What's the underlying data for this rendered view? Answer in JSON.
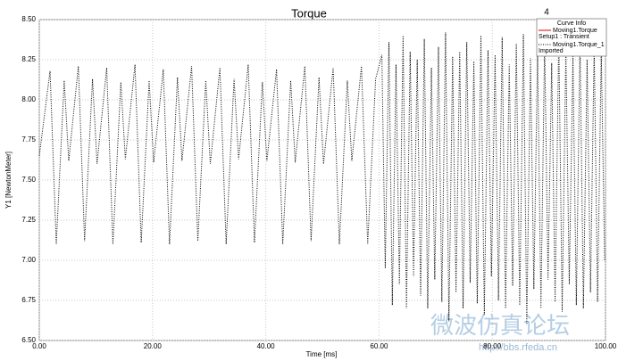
{
  "chart_data": {
    "type": "line",
    "title": "Torque",
    "corner_label": "4",
    "x_label": "Time [ms]",
    "y_label": "Y1 [NewtonMeter]",
    "xlim": [
      0,
      100
    ],
    "ylim": [
      6.5,
      8.5
    ],
    "xticks": [
      {
        "value": 0,
        "label": "0.00"
      },
      {
        "value": 20,
        "label": "20.00"
      },
      {
        "value": 40,
        "label": "40.00"
      },
      {
        "value": 60,
        "label": "60.00"
      },
      {
        "value": 80,
        "label": "80.00"
      },
      {
        "value": 100,
        "label": "100.00"
      }
    ],
    "yticks": [
      {
        "value": 6.5,
        "label": "6.50"
      },
      {
        "value": 6.75,
        "label": "6.75"
      },
      {
        "value": 7,
        "label": "7.00"
      },
      {
        "value": 7.25,
        "label": "7.25"
      },
      {
        "value": 7.5,
        "label": "7.50"
      },
      {
        "value": 7.75,
        "label": "7.75"
      },
      {
        "value": 8,
        "label": "8.00"
      },
      {
        "value": 8.25,
        "label": "8.25"
      },
      {
        "value": 8.5,
        "label": "8.50"
      }
    ],
    "grid": true,
    "legend": {
      "title": "Curve Info",
      "entries": [
        {
          "name": "Moving1.Torque",
          "detail": "Setup1 : Transient",
          "color": "#e00000",
          "dash": "solid"
        },
        {
          "name": "Moving1.Torque_1",
          "detail": "Imported",
          "color": "#000000",
          "dash": "dotted"
        }
      ]
    },
    "series": [
      {
        "color": "#000000",
        "dash": "dotted",
        "x": [
          0,
          1.9,
          3,
          4.4,
          5.2,
          6.9,
          8,
          9.4,
          10.2,
          11.9,
          13,
          14.4,
          15.2,
          16.9,
          18,
          19.4,
          20.2,
          21.9,
          23,
          24.4,
          25.2,
          26.9,
          28,
          29.4,
          30.2,
          31.9,
          33,
          34.4,
          35.2,
          36.9,
          38,
          39.4,
          40.2,
          41.9,
          43,
          44.4,
          45.2,
          46.9,
          48,
          49.4,
          50.2,
          51.9,
          53,
          54.4,
          55.2,
          56.9,
          58,
          59.4,
          60.5,
          61.1,
          61.75,
          62.35,
          63,
          63.6,
          64.25,
          64.85,
          65.5,
          66.1,
          66.75,
          67.35,
          68,
          68.6,
          69.25,
          69.85,
          70.5,
          71.1,
          71.75,
          72.35,
          73,
          73.6,
          74.25,
          74.85,
          75.5,
          76.1,
          76.75,
          77.35,
          78,
          78.6,
          79.25,
          79.85,
          80.5,
          81.1,
          81.75,
          82.35,
          83,
          83.6,
          84.25,
          84.85,
          85.5,
          86.1,
          86.75,
          87.35,
          88,
          88.6,
          89.25,
          89.85,
          90.5,
          91.1,
          91.75,
          92.35,
          93,
          93.6,
          94.25,
          94.85,
          95.5,
          96.1,
          96.75,
          97.35,
          98,
          98.6,
          99.25,
          99.85
        ],
        "values": [
          7.65,
          8.18,
          7.1,
          8.12,
          7.62,
          8.21,
          7.12,
          8.13,
          7.6,
          8.2,
          7.1,
          8.11,
          7.63,
          8.22,
          7.11,
          8.12,
          7.61,
          8.19,
          7.1,
          8.14,
          7.62,
          8.21,
          7.12,
          8.12,
          7.6,
          8.2,
          7.1,
          8.13,
          7.63,
          8.22,
          7.11,
          8.11,
          7.62,
          8.19,
          7.1,
          8.12,
          7.61,
          8.21,
          7.12,
          8.14,
          7.6,
          8.2,
          7.1,
          8.12,
          7.62,
          8.21,
          7.1,
          8.13,
          8.28,
          6.95,
          8.36,
          6.72,
          8.22,
          6.85,
          8.4,
          6.7,
          8.3,
          6.9,
          8.25,
          6.78,
          8.38,
          6.7,
          8.2,
          6.88,
          8.33,
          6.74,
          8.42,
          6.62,
          8.27,
          6.8,
          8.3,
          6.7,
          8.36,
          6.86,
          8.24,
          6.73,
          8.4,
          6.66,
          8.31,
          6.9,
          8.28,
          6.75,
          8.39,
          6.7,
          8.22,
          6.84,
          8.35,
          6.72,
          8.41,
          6.6,
          8.26,
          6.82,
          8.3,
          6.7,
          8.37,
          6.88,
          8.23,
          6.74,
          8.4,
          6.68,
          8.32,
          6.85,
          8.27,
          6.72,
          8.38,
          6.7,
          8.25,
          6.8,
          8.34,
          6.74,
          8.3,
          7.0
        ]
      }
    ]
  },
  "watermark": {
    "title": "微波仿真论坛",
    "url": "http://bbs.rfeda.cn"
  }
}
